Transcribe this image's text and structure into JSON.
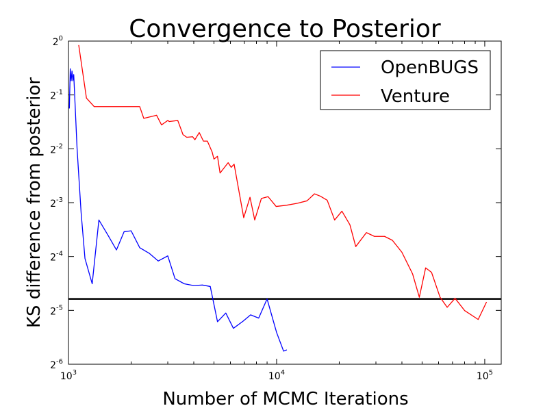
{
  "chart_data": {
    "type": "line",
    "title": "Convergence to Posterior",
    "xlabel": "Number of MCMC Iterations",
    "ylabel": "KS difference from posterior",
    "x_scale": "log10",
    "y_scale": "log2",
    "xlim": [
      1000,
      120000
    ],
    "ylim": [
      0.015625,
      1
    ],
    "x_ticks": [
      {
        "value": 1000,
        "base": "10",
        "exp": "3"
      },
      {
        "value": 10000,
        "base": "10",
        "exp": "4"
      },
      {
        "value": 100000,
        "base": "10",
        "exp": "5"
      }
    ],
    "y_ticks": [
      {
        "value": 1,
        "base": "2",
        "exp": "0"
      },
      {
        "value": 0.5,
        "base": "2",
        "exp": "-1"
      },
      {
        "value": 0.25,
        "base": "2",
        "exp": "-2"
      },
      {
        "value": 0.125,
        "base": "2",
        "exp": "-3"
      },
      {
        "value": 0.0625,
        "base": "2",
        "exp": "-4"
      },
      {
        "value": 0.03125,
        "base": "2",
        "exp": "-5"
      },
      {
        "value": 0.015625,
        "base": "2",
        "exp": "-6"
      }
    ],
    "hline": {
      "y": 0.0362,
      "color": "#000000"
    },
    "legend_position": "top-right",
    "grid": false,
    "series": [
      {
        "name": "OpenBUGS",
        "color": "#0000ff",
        "points": [
          [
            1010,
            0.42
          ],
          [
            1020,
            0.7
          ],
          [
            1030,
            0.6
          ],
          [
            1040,
            0.68
          ],
          [
            1050,
            0.6
          ],
          [
            1060,
            0.65
          ],
          [
            1100,
            0.25
          ],
          [
            1150,
            0.11
          ],
          [
            1200,
            0.061
          ],
          [
            1300,
            0.044
          ],
          [
            1400,
            0.1
          ],
          [
            1550,
            0.082
          ],
          [
            1700,
            0.068
          ],
          [
            1850,
            0.086
          ],
          [
            2000,
            0.087
          ],
          [
            2200,
            0.07
          ],
          [
            2450,
            0.065
          ],
          [
            2700,
            0.059
          ],
          [
            3000,
            0.063
          ],
          [
            3250,
            0.047
          ],
          [
            3600,
            0.044
          ],
          [
            4000,
            0.043
          ],
          [
            4400,
            0.0433
          ],
          [
            4800,
            0.0425
          ],
          [
            5200,
            0.027
          ],
          [
            5700,
            0.0302
          ],
          [
            6200,
            0.0248
          ],
          [
            6900,
            0.0272
          ],
          [
            7500,
            0.0295
          ],
          [
            8200,
            0.0283
          ],
          [
            9000,
            0.0362
          ],
          [
            10000,
            0.0235
          ],
          [
            10800,
            0.0185
          ],
          [
            11200,
            0.0188
          ]
        ]
      },
      {
        "name": "Venture",
        "color": "#ff0000",
        "points": [
          [
            1120,
            0.95
          ],
          [
            1220,
            0.48
          ],
          [
            1330,
            0.43
          ],
          [
            2200,
            0.43
          ],
          [
            2300,
            0.37
          ],
          [
            2650,
            0.385
          ],
          [
            2800,
            0.34
          ],
          [
            2900,
            0.35
          ],
          [
            3000,
            0.36
          ],
          [
            3050,
            0.355
          ],
          [
            3350,
            0.36
          ],
          [
            3550,
            0.3
          ],
          [
            3700,
            0.29
          ],
          [
            3950,
            0.292
          ],
          [
            4050,
            0.281
          ],
          [
            4250,
            0.308
          ],
          [
            4450,
            0.276
          ],
          [
            4650,
            0.276
          ],
          [
            4900,
            0.24
          ],
          [
            5000,
            0.219
          ],
          [
            5200,
            0.227
          ],
          [
            5350,
            0.183
          ],
          [
            5850,
            0.209
          ],
          [
            6050,
            0.197
          ],
          [
            6250,
            0.205
          ],
          [
            6950,
            0.103
          ],
          [
            7450,
            0.134
          ],
          [
            7850,
            0.1
          ],
          [
            8450,
            0.132
          ],
          [
            9100,
            0.135
          ],
          [
            9950,
            0.119
          ],
          [
            11200,
            0.121
          ],
          [
            12600,
            0.124
          ],
          [
            14000,
            0.128
          ],
          [
            15200,
            0.14
          ],
          [
            16200,
            0.136
          ],
          [
            17500,
            0.129
          ],
          [
            19000,
            0.1
          ],
          [
            20600,
            0.112
          ],
          [
            22500,
            0.094
          ],
          [
            24000,
            0.071
          ],
          [
            27000,
            0.085
          ],
          [
            29500,
            0.081
          ],
          [
            33000,
            0.081
          ],
          [
            36000,
            0.077
          ],
          [
            40000,
            0.066
          ],
          [
            45000,
            0.05
          ],
          [
            48500,
            0.037
          ],
          [
            52000,
            0.054
          ],
          [
            55500,
            0.051
          ],
          [
            61000,
            0.037
          ],
          [
            66000,
            0.0325
          ],
          [
            72000,
            0.0365
          ],
          [
            80000,
            0.0312
          ],
          [
            93000,
            0.0278
          ],
          [
            102000,
            0.0348
          ]
        ]
      }
    ]
  }
}
